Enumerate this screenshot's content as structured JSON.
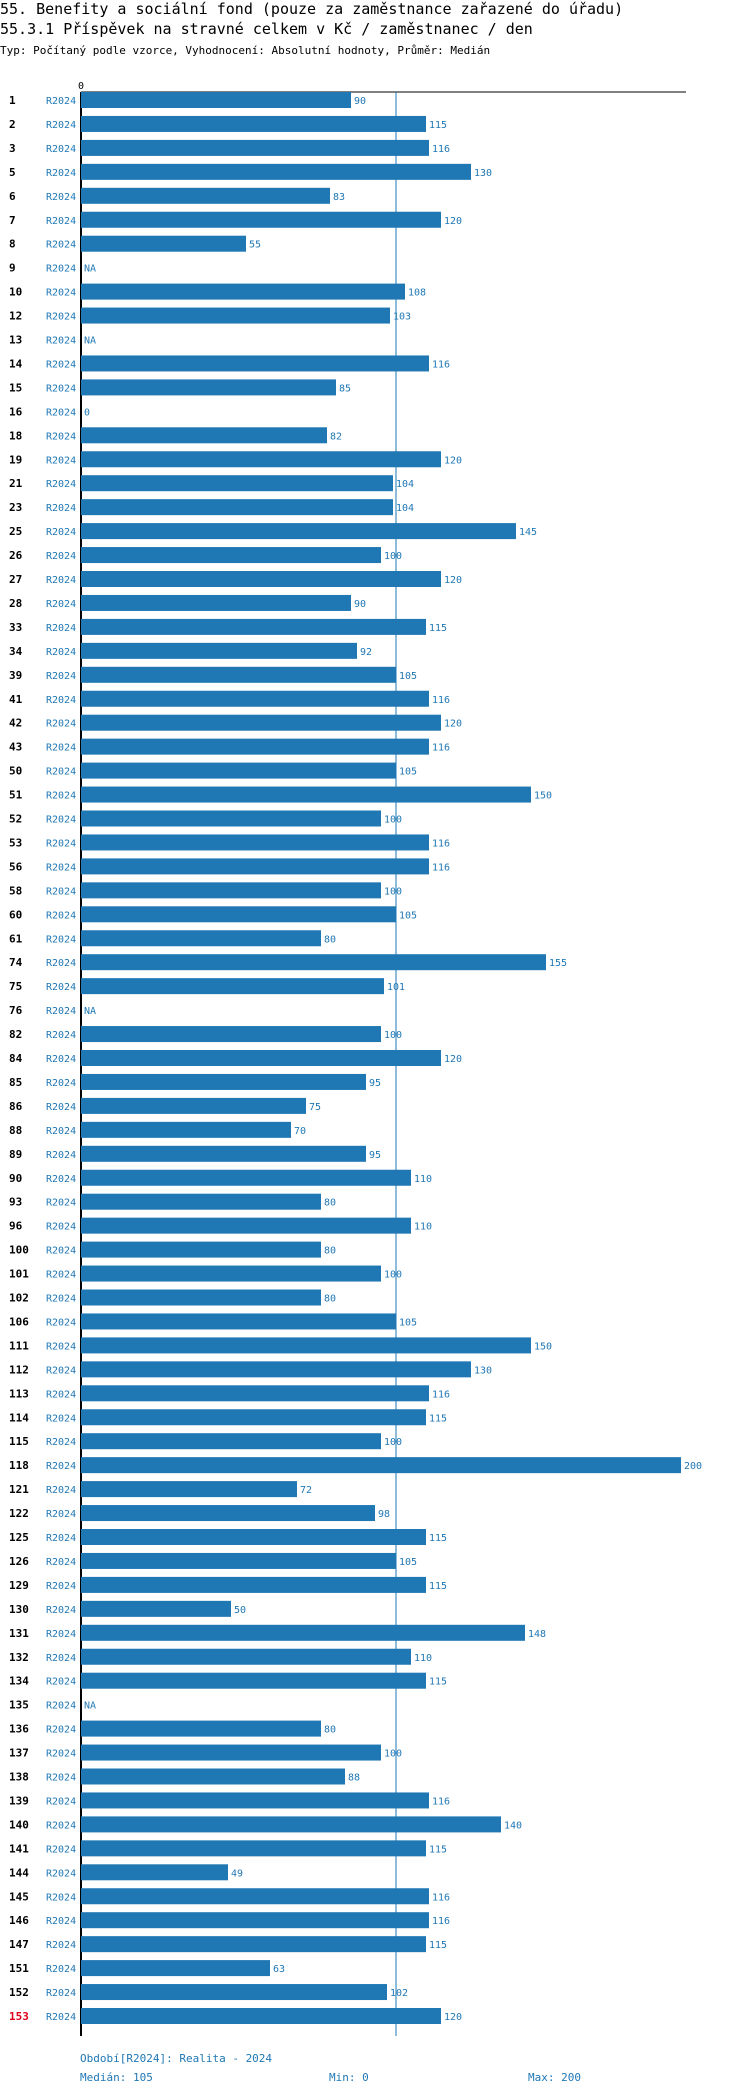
{
  "header": {
    "title": "55. Benefity a sociální fond (pouze za zaměstnance zařazené do úřadu)",
    "subtitle": "55.3.1 Příspěvek na stravné celkem v Kč / zaměstnanec / den",
    "meta": "Typ: Počítaný podle vzorce, Vyhodnocení: Absolutní hodnoty, Průměr: Medián"
  },
  "colors": {
    "bar": "#1f77b4",
    "text_blue": "#1f77b4",
    "highlight": "#e0001b"
  },
  "chart_data": {
    "type": "bar",
    "orientation": "horizontal",
    "axis_zero_label": "0",
    "xlim": [
      0,
      200
    ],
    "median_line": 105,
    "series_label": "R2024",
    "highlight_category": "153",
    "categories": [
      "1",
      "2",
      "3",
      "5",
      "6",
      "7",
      "8",
      "9",
      "10",
      "12",
      "13",
      "14",
      "15",
      "16",
      "18",
      "19",
      "21",
      "23",
      "25",
      "26",
      "27",
      "28",
      "33",
      "34",
      "39",
      "41",
      "42",
      "43",
      "50",
      "51",
      "52",
      "53",
      "56",
      "58",
      "60",
      "61",
      "74",
      "75",
      "76",
      "82",
      "84",
      "85",
      "86",
      "88",
      "89",
      "90",
      "93",
      "96",
      "100",
      "101",
      "102",
      "106",
      "111",
      "112",
      "113",
      "114",
      "115",
      "118",
      "121",
      "122",
      "125",
      "126",
      "129",
      "130",
      "131",
      "132",
      "134",
      "135",
      "136",
      "137",
      "138",
      "139",
      "140",
      "141",
      "144",
      "145",
      "146",
      "147",
      "151",
      "152",
      "153"
    ],
    "values": [
      90,
      115,
      116,
      130,
      83,
      120,
      55,
      "NA",
      108,
      103,
      "NA",
      116,
      85,
      0,
      82,
      120,
      104,
      104,
      145,
      100,
      120,
      90,
      115,
      92,
      105,
      116,
      120,
      116,
      105,
      150,
      100,
      116,
      116,
      100,
      105,
      80,
      155,
      101,
      "NA",
      100,
      120,
      95,
      75,
      70,
      95,
      110,
      80,
      110,
      80,
      100,
      80,
      105,
      150,
      130,
      116,
      115,
      100,
      200,
      72,
      98,
      115,
      105,
      115,
      50,
      148,
      110,
      115,
      "NA",
      80,
      100,
      88,
      116,
      140,
      115,
      49,
      116,
      116,
      115,
      63,
      102,
      120
    ]
  },
  "footer": {
    "period": "Období[R2024]: Realita - 2024",
    "median": "Medián: 105",
    "min": "Min: 0",
    "max": "Max: 200"
  }
}
